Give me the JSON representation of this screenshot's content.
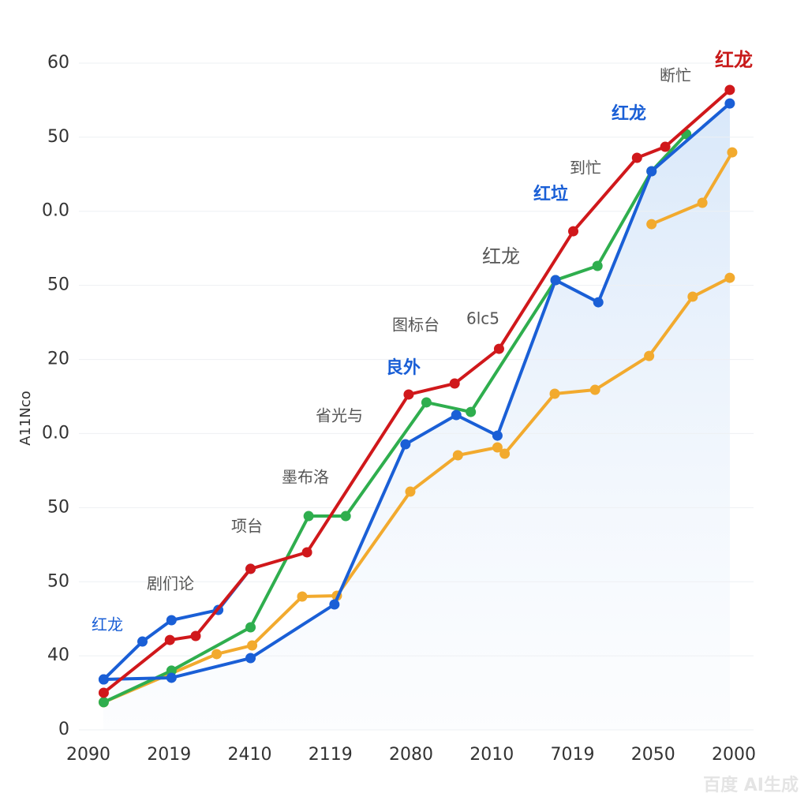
{
  "chart_data": {
    "type": "line",
    "y_label": "A11Nco",
    "xlim": [
      0,
      8
    ],
    "ylim": [
      0,
      60
    ],
    "xticks": [
      {
        "value": 0,
        "label": "2090"
      },
      {
        "value": 1,
        "label": "2019"
      },
      {
        "value": 2,
        "label": "2410"
      },
      {
        "value": 3,
        "label": "2119"
      },
      {
        "value": 4,
        "label": "2080"
      },
      {
        "value": 5,
        "label": "2010"
      },
      {
        "value": 6,
        "label": "7019"
      },
      {
        "value": 7,
        "label": "2050"
      },
      {
        "value": 8,
        "label": "2000"
      }
    ],
    "yticks": [
      {
        "value": 0,
        "label": "0"
      },
      {
        "value": 6.67,
        "label": "40"
      },
      {
        "value": 13.33,
        "label": "50"
      },
      {
        "value": 20,
        "label": "50"
      },
      {
        "value": 26.67,
        "label": "0.0"
      },
      {
        "value": 33.33,
        "label": "20"
      },
      {
        "value": 40,
        "label": "50"
      },
      {
        "value": 46.67,
        "label": "0.0"
      },
      {
        "value": 53.33,
        "label": "50"
      },
      60
    ],
    "grid": true,
    "series": [
      {
        "color": "#f2aa2e",
        "x": [
          0.19,
          1.59,
          2.03,
          2.65,
          3.08,
          3.99,
          4.58,
          5.07,
          5.16,
          5.78,
          6.28,
          6.95,
          7.49,
          7.95
        ],
        "values": [
          2.49,
          6.82,
          7.6,
          12.0,
          12.07,
          21.44,
          24.71,
          25.42,
          24.85,
          30.25,
          30.6,
          33.65,
          38.98,
          40.68
        ]
      },
      {
        "color": "#f2aa2e",
        "x": [
          6.98,
          7.61,
          7.98
        ],
        "values": [
          45.51,
          47.43,
          51.97
        ]
      },
      {
        "color": "#2fae4e",
        "x": [
          0.19,
          1.03,
          2.01,
          2.73,
          3.19,
          4.19,
          4.74,
          5.79,
          6.31,
          6.98,
          7.41
        ],
        "values": [
          2.49,
          5.33,
          9.23,
          19.24,
          19.24,
          29.47,
          28.61,
          40.47,
          41.75,
          50.27,
          53.61
        ]
      },
      {
        "color": "#1a5fd6",
        "x": [
          0.19,
          1.03,
          2.01,
          3.05,
          3.93,
          4.56,
          5.07,
          5.79,
          6.32,
          6.98,
          7.95
        ],
        "values": [
          4.54,
          4.69,
          6.46,
          11.29,
          25.7,
          28.33,
          26.48,
          40.47,
          38.48,
          50.27,
          56.37
        ]
      },
      {
        "color": "#1a5fd6",
        "x": [
          0.19,
          0.67,
          1.03,
          1.61,
          2.01
        ],
        "values": [
          4.54,
          7.95,
          9.87,
          10.79,
          14.49
        ]
      },
      {
        "color": "#d0181b",
        "x": [
          0.19,
          1.01,
          1.33,
          2.01,
          2.71,
          3.97,
          4.54,
          5.09,
          6.01,
          6.8,
          7.15,
          7.95
        ],
        "values": [
          3.34,
          8.09,
          8.45,
          14.49,
          15.98,
          30.18,
          31.17,
          34.29,
          44.87,
          51.48,
          52.47,
          57.59
        ]
      }
    ],
    "annotations": [
      "红龙",
      "断忙",
      "红龙",
      "到忙",
      "红垃",
      "红龙",
      "图标台",
      "6lc5",
      "良外",
      "省光与",
      "墨布洛",
      "项台",
      "剧们论",
      "红龙"
    ],
    "watermark": "百度 AI生成"
  }
}
